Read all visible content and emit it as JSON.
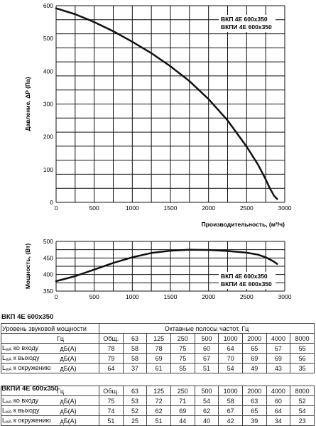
{
  "chart_data": [
    {
      "type": "line",
      "legend": [
        "ВКП 4E 600x350",
        "ВКПИ 4E 600x350"
      ],
      "legend_position": "top-right",
      "ylabel": "Давление, ΔP (Па)",
      "xlabel": "Производительность, (м³/ч)",
      "xlim": [
        0,
        3000
      ],
      "ylim": [
        0,
        600
      ],
      "xticks": [
        "0",
        "500",
        "1000",
        "1500",
        "2000",
        "2500",
        "3000"
      ],
      "yticks": [
        "0",
        "100",
        "200",
        "300",
        "400",
        "500",
        "600"
      ],
      "grid": true,
      "series": [
        {
          "x": [
            0,
            250,
            500,
            750,
            1000,
            1250,
            1500,
            1750,
            2000,
            2250,
            2500,
            2650,
            2750,
            2800,
            2860,
            2900
          ],
          "y": [
            592,
            574,
            550,
            522,
            490,
            455,
            415,
            370,
            315,
            250,
            170,
            115,
            70,
            45,
            20,
            10
          ]
        }
      ]
    },
    {
      "type": "line",
      "legend": [
        "ВКП 4E 600x350",
        "ВКПИ 4E 600x350"
      ],
      "legend_position": "bottom-right",
      "ylabel": "Мощность, (Вт)",
      "xlim": [
        0,
        3000
      ],
      "ylim": [
        350,
        500
      ],
      "xticks": [
        "0",
        "500",
        "1000",
        "1500",
        "2000",
        "2500",
        "3000"
      ],
      "yticks": [
        "350",
        "400",
        "450",
        "500"
      ],
      "grid": true,
      "series": [
        {
          "x": [
            0,
            250,
            500,
            750,
            1000,
            1250,
            1500,
            1750,
            2000,
            2250,
            2500,
            2650,
            2750,
            2850,
            2900
          ],
          "y": [
            380,
            395,
            415,
            435,
            452,
            465,
            472,
            475,
            474,
            471,
            466,
            460,
            452,
            440,
            432
          ]
        }
      ]
    }
  ],
  "tables": [
    {
      "title": "ВКП 4E 600x350",
      "header1": [
        "Уровень звуковой мощности",
        "Октавные полосы частот, Гц"
      ],
      "header2": [
        "Гц",
        "Общ.",
        "63",
        "125",
        "250",
        "500",
        "1000",
        "2000",
        "4000",
        "8000"
      ],
      "rows": [
        {
          "label": "ко входу",
          "unit": "дБ(А)",
          "values": [
            "78",
            "58",
            "78",
            "75",
            "60",
            "64",
            "65",
            "67",
            "55"
          ]
        },
        {
          "label": "к выходу",
          "unit": "дБ(А)",
          "values": [
            "79",
            "58",
            "69",
            "75",
            "67",
            "70",
            "69",
            "69",
            "56"
          ]
        },
        {
          "label": "к окружению",
          "unit": "дБ(А)",
          "values": [
            "64",
            "37",
            "61",
            "55",
            "51",
            "54",
            "49",
            "43",
            "35"
          ]
        }
      ]
    },
    {
      "title": "ВКПИ 4E 600x350",
      "header2": [
        "Гц",
        "Общ.",
        "63",
        "125",
        "250",
        "500",
        "1000",
        "2000",
        "4000",
        "8000"
      ],
      "rows": [
        {
          "label": "ко входу",
          "unit": "дБ(А)",
          "values": [
            "75",
            "53",
            "72",
            "71",
            "54",
            "58",
            "63",
            "60",
            "52"
          ]
        },
        {
          "label": "к выходу",
          "unit": "дБ(А)",
          "values": [
            "74",
            "52",
            "62",
            "69",
            "62",
            "67",
            "65",
            "64",
            "54"
          ]
        },
        {
          "label": "к окружению",
          "unit": "дБ(А)",
          "values": [
            "51",
            "25",
            "51",
            "44",
            "40",
            "42",
            "39",
            "34",
            "23"
          ]
        }
      ]
    }
  ],
  "lwa_prefix": "L",
  "lwa_sub": "wA"
}
